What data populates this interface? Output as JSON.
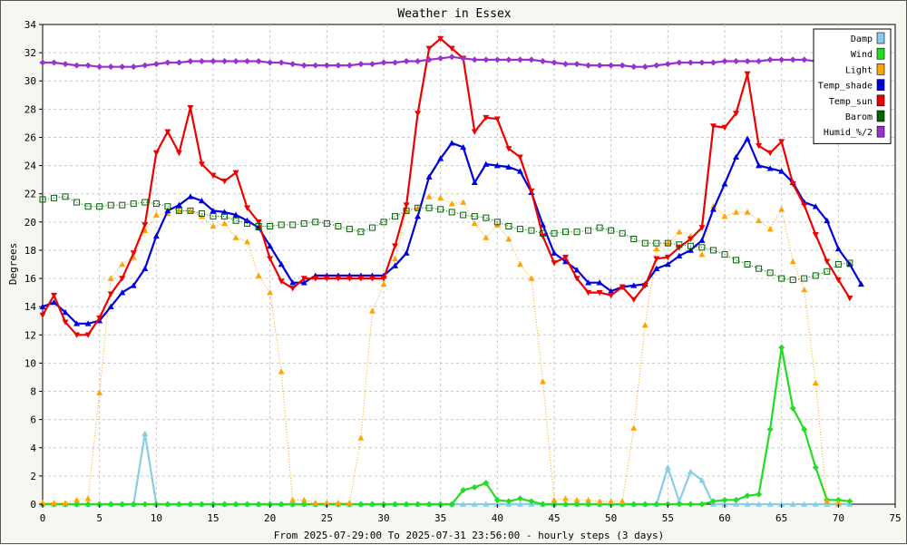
{
  "chart_data": {
    "type": "line",
    "title": "Weather in Essex",
    "xlabel": "From 2025-07-29:00 To 2025-07-31 23:56:00 - hourly steps (3 days)",
    "ylabel": "Degrees",
    "xlim": [
      0,
      75
    ],
    "ylim": [
      0,
      34
    ],
    "xticks": [
      0,
      5,
      10,
      15,
      20,
      25,
      30,
      35,
      40,
      45,
      50,
      55,
      60,
      65,
      70,
      75
    ],
    "yticks": [
      0,
      2,
      4,
      6,
      8,
      10,
      12,
      14,
      16,
      18,
      20,
      22,
      24,
      26,
      28,
      30,
      32,
      34
    ],
    "grid": true,
    "legend": "top-right",
    "series": [
      {
        "name": "Damp",
        "color": "#87cee6",
        "marker": "triangle-up",
        "style": "solid",
        "values": [
          0,
          0,
          0,
          0,
          0,
          0,
          0,
          0,
          0,
          5,
          0,
          0,
          0,
          0,
          0,
          0,
          0,
          0,
          0,
          0,
          0,
          0,
          0,
          0,
          0,
          0,
          0,
          0,
          0,
          0,
          0,
          0,
          0,
          0,
          0,
          0,
          0,
          0,
          0,
          0,
          0,
          0,
          0,
          0,
          0,
          0,
          0,
          0,
          0,
          0,
          0,
          0,
          0,
          0,
          0,
          2.6,
          0.2,
          2.3,
          1.7,
          0,
          0,
          0,
          0,
          0,
          0,
          0,
          0,
          0,
          0,
          0,
          0,
          0
        ]
      },
      {
        "name": "Wind",
        "color": "#22dd22",
        "marker": "diamond",
        "style": "solid",
        "values": [
          0,
          0,
          0,
          0,
          0,
          0,
          0,
          0,
          0,
          0,
          0,
          0,
          0,
          0,
          0,
          0,
          0,
          0,
          0,
          0,
          0,
          0,
          0,
          0,
          0,
          0,
          0,
          0,
          0,
          0,
          0,
          0,
          0,
          0,
          0,
          0,
          0,
          1,
          1.2,
          1.5,
          0.3,
          0.2,
          0.4,
          0.2,
          0,
          0,
          0,
          0,
          0,
          0,
          0,
          0,
          0,
          0,
          0,
          0,
          0,
          0,
          0,
          0.2,
          0.3,
          0.3,
          0.6,
          0.7,
          5.3,
          11.1,
          6.8,
          5.3,
          2.6,
          0.3,
          0.3,
          0.2
        ]
      },
      {
        "name": "Light",
        "color": "#ffa500",
        "marker": "triangle-up",
        "style": "dotted",
        "values": [
          0.1,
          0.1,
          0.1,
          0.3,
          0.4,
          7.9,
          16,
          17,
          17.5,
          19.4,
          20.5,
          20.6,
          20.8,
          20.8,
          20.4,
          19.7,
          19.9,
          18.9,
          18.6,
          16.2,
          15,
          9.4,
          0.3,
          0.3,
          0.1,
          0.1,
          0.1,
          0.1,
          4.7,
          13.7,
          15.6,
          17.4,
          20.8,
          21,
          21.8,
          21.7,
          21.3,
          21.4,
          19.9,
          18.9,
          19.8,
          18.8,
          17,
          16,
          8.7,
          0.3,
          0.4,
          0.3,
          0.3,
          0.2,
          0.2,
          0.2,
          5.4,
          12.7,
          18.1,
          18.5,
          19.3,
          19,
          17.7,
          21.1,
          20.4,
          20.7,
          20.7,
          20.1,
          19.5,
          20.9,
          17.2,
          15.2,
          8.6,
          0.2,
          0.1
        ]
      },
      {
        "name": "Temp_shade",
        "color": "#0000dd",
        "marker": "triangle-up",
        "style": "solid",
        "values": [
          14,
          14.3,
          13.6,
          12.8,
          12.8,
          13,
          14,
          15,
          15.5,
          16.7,
          19,
          20.8,
          21.2,
          21.8,
          21.5,
          20.8,
          20.7,
          20.5,
          20.1,
          19.6,
          18.3,
          17,
          15.7,
          15.7,
          16.2,
          16.2,
          16.2,
          16.2,
          16.2,
          16.2,
          16.2,
          16.9,
          17.8,
          20.4,
          23.2,
          24.5,
          25.6,
          25.3,
          22.8,
          24.1,
          24,
          23.9,
          23.6,
          22.1,
          19.8,
          17.8,
          17.2,
          16.6,
          15.7,
          15.7,
          15.1,
          15.4,
          15.5,
          15.6,
          16.7,
          17,
          17.6,
          18,
          18.7,
          20.9,
          22.7,
          24.6,
          25.9,
          24,
          23.8,
          23.6,
          22.8,
          21.4,
          21.1,
          20.1,
          18.1,
          17,
          15.6
        ]
      },
      {
        "name": "Temp_sun",
        "color": "#ee0000",
        "marker": "triangle-down",
        "style": "solid",
        "values": [
          13.4,
          14.8,
          12.9,
          12,
          12,
          13.2,
          14.9,
          16,
          17.8,
          19.8,
          24.9,
          26.4,
          24.9,
          28.1,
          24.1,
          23.3,
          22.9,
          23.5,
          21,
          20,
          17.4,
          15.8,
          15.3,
          16,
          16,
          16,
          16,
          16,
          16,
          16,
          16,
          18.3,
          21.2,
          27.7,
          32.3,
          33,
          32.3,
          31.6,
          26.4,
          27.4,
          27.3,
          25.2,
          24.6,
          22.2,
          19,
          17.1,
          17.5,
          16,
          15,
          15,
          14.8,
          15.4,
          14.5,
          15.5,
          17.4,
          17.5,
          18.2,
          18.8,
          19.6,
          26.8,
          26.7,
          27.7,
          30.5,
          25.4,
          24.9,
          25.7,
          22.7,
          21.2,
          19.1,
          17.2,
          15.9,
          14.6
        ]
      },
      {
        "name": "Barom",
        "color": "#006400",
        "marker": "square-open",
        "style": "dotted",
        "values": [
          21.6,
          21.7,
          21.8,
          21.4,
          21.1,
          21.1,
          21.2,
          21.2,
          21.3,
          21.4,
          21.3,
          21.1,
          20.8,
          20.8,
          20.6,
          20.4,
          20.4,
          20.1,
          19.9,
          19.7,
          19.7,
          19.8,
          19.8,
          19.9,
          20,
          19.9,
          19.7,
          19.5,
          19.3,
          19.6,
          20,
          20.4,
          20.8,
          21,
          21,
          20.9,
          20.7,
          20.5,
          20.4,
          20.3,
          20,
          19.7,
          19.5,
          19.4,
          19.2,
          19.2,
          19.3,
          19.3,
          19.4,
          19.6,
          19.4,
          19.2,
          18.8,
          18.5,
          18.5,
          18.5,
          18.4,
          18.3,
          18.2,
          18,
          17.7,
          17.3,
          17,
          16.7,
          16.4,
          16,
          15.9,
          16,
          16.2,
          16.5,
          17,
          17.1
        ]
      },
      {
        "name": "Humid_%/2",
        "color": "#9932cc",
        "marker": "diamond",
        "style": "solid",
        "values": [
          31.3,
          31.3,
          31.2,
          31.1,
          31.1,
          31,
          31,
          31,
          31,
          31.1,
          31.2,
          31.3,
          31.3,
          31.4,
          31.4,
          31.4,
          31.4,
          31.4,
          31.4,
          31.4,
          31.3,
          31.3,
          31.2,
          31.1,
          31.1,
          31.1,
          31.1,
          31.1,
          31.2,
          31.2,
          31.3,
          31.3,
          31.4,
          31.4,
          31.5,
          31.6,
          31.7,
          31.6,
          31.5,
          31.5,
          31.5,
          31.5,
          31.5,
          31.5,
          31.4,
          31.3,
          31.2,
          31.2,
          31.1,
          31.1,
          31.1,
          31.1,
          31,
          31,
          31.1,
          31.2,
          31.3,
          31.3,
          31.3,
          31.3,
          31.4,
          31.4,
          31.4,
          31.4,
          31.5,
          31.5,
          31.5,
          31.5,
          31.4,
          31.3,
          31.3,
          31.2
        ]
      }
    ]
  }
}
